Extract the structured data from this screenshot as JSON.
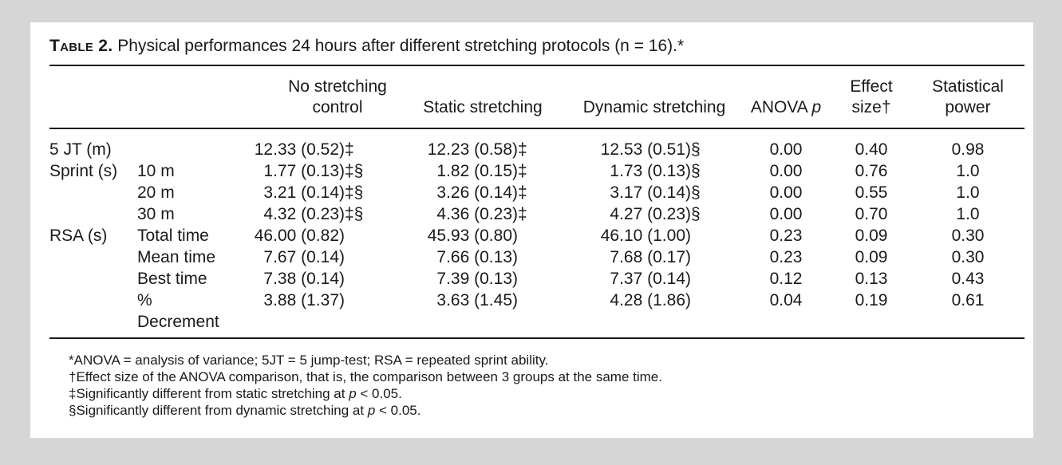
{
  "caption": {
    "label": "Table 2.",
    "text": "Physical performances 24 hours after different stretching protocols (n = 16).*"
  },
  "headers": [
    [
      "No stretching",
      "control"
    ],
    [
      "",
      "Static stretching"
    ],
    [
      "",
      "Dynamic stretching"
    ],
    [
      "",
      "ANOVA p"
    ],
    [
      "Effect",
      "size†"
    ],
    [
      "Statistical",
      "power"
    ]
  ],
  "rows": [
    {
      "group": "5 JT (m)",
      "sub": "",
      "sub2": "",
      "nostretch": "12.33 (0.52)‡",
      "static": "12.23 (0.58)‡",
      "dynamic": "12.53 (0.51)§",
      "anova": "0.00",
      "effect": "0.40",
      "power": "0.98"
    },
    {
      "group": "Sprint (s)",
      "sub": "10 m",
      "sub2": "",
      "nostretch": "1.77 (0.13)‡§",
      "static": "1.82 (0.15)‡",
      "dynamic": "1.73 (0.13)§",
      "anova": "0.00",
      "effect": "0.76",
      "power": "1.0"
    },
    {
      "group": "",
      "sub": "20 m",
      "sub2": "",
      "nostretch": "3.21 (0.14)‡§",
      "static": "3.26 (0.14)‡",
      "dynamic": "3.17 (0.14)§",
      "anova": "0.00",
      "effect": "0.55",
      "power": "1.0"
    },
    {
      "group": "",
      "sub": "30 m",
      "sub2": "",
      "nostretch": "4.32 (0.23)‡§",
      "static": "4.36 (0.23)‡",
      "dynamic": "4.27 (0.23)§",
      "anova": "0.00",
      "effect": "0.70",
      "power": "1.0"
    },
    {
      "group": "RSA (s)",
      "sub": "Total time",
      "sub2": "",
      "nostretch": "46.00 (0.82)",
      "static": "45.93 (0.80)",
      "dynamic": "46.10 (1.00)",
      "anova": "0.23",
      "effect": "0.09",
      "power": "0.30"
    },
    {
      "group": "",
      "sub": "Mean time",
      "sub2": "",
      "nostretch": "7.67 (0.14)",
      "static": "7.66 (0.13)",
      "dynamic": "7.68 (0.17)",
      "anova": "0.23",
      "effect": "0.09",
      "power": "0.30"
    },
    {
      "group": "",
      "sub": "Best time",
      "sub2": "",
      "nostretch": "7.38 (0.14)",
      "static": "7.39 (0.13)",
      "dynamic": "7.37 (0.14)",
      "anova": "0.12",
      "effect": "0.13",
      "power": "0.43"
    },
    {
      "group": "",
      "sub": "%",
      "sub2": "Decrement",
      "nostretch": "3.88 (1.37)",
      "static": "3.63 (1.45)",
      "dynamic": "4.28 (1.86)",
      "anova": "0.04",
      "effect": "0.19",
      "power": "0.61"
    }
  ],
  "footnotes": [
    "*ANOVA = analysis of variance; 5JT = 5 jump-test; RSA = repeated sprint ability.",
    "†Effect size of the ANOVA comparison, that is, the comparison between 3 groups at the same time.",
    "‡Significantly different from static stretching at p < 0.05.",
    "§Significantly different from dynamic stretching at p < 0.05."
  ]
}
